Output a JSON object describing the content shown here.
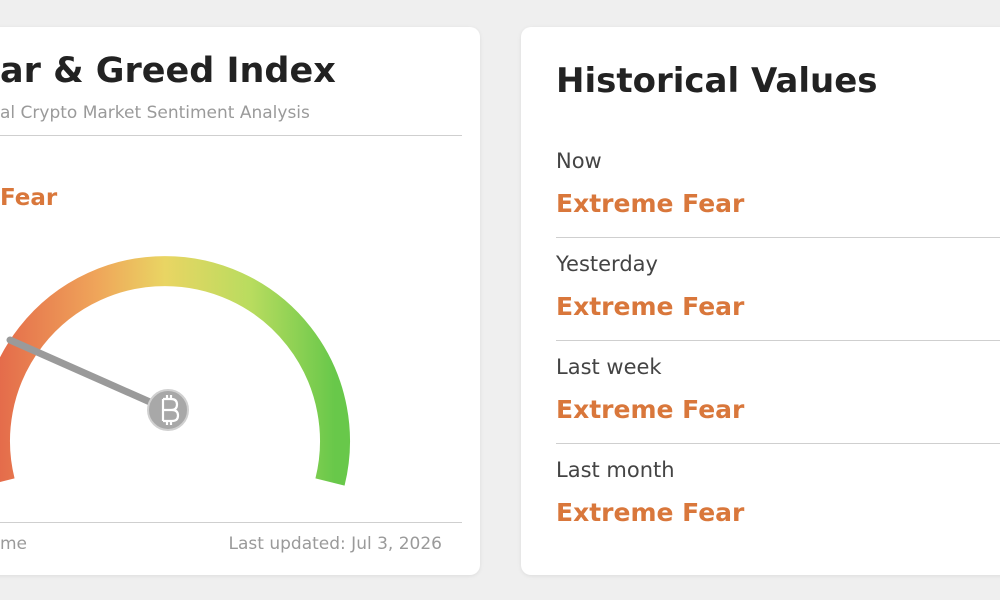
{
  "index_card": {
    "title": "ar & Greed Index",
    "subtitle": "al Crypto Market Sentiment Analysis",
    "status": "Fear",
    "footer_left": "me",
    "last_updated": "Last updated: Jul 3, 2026"
  },
  "historical": {
    "title": "Historical Values",
    "rows": [
      {
        "period": "Now",
        "value": "Extreme Fear"
      },
      {
        "period": "Yesterday",
        "value": "Extreme Fear"
      },
      {
        "period": "Last week",
        "value": "Extreme Fear"
      },
      {
        "period": "Last month",
        "value": "Extreme Fear"
      }
    ]
  }
}
